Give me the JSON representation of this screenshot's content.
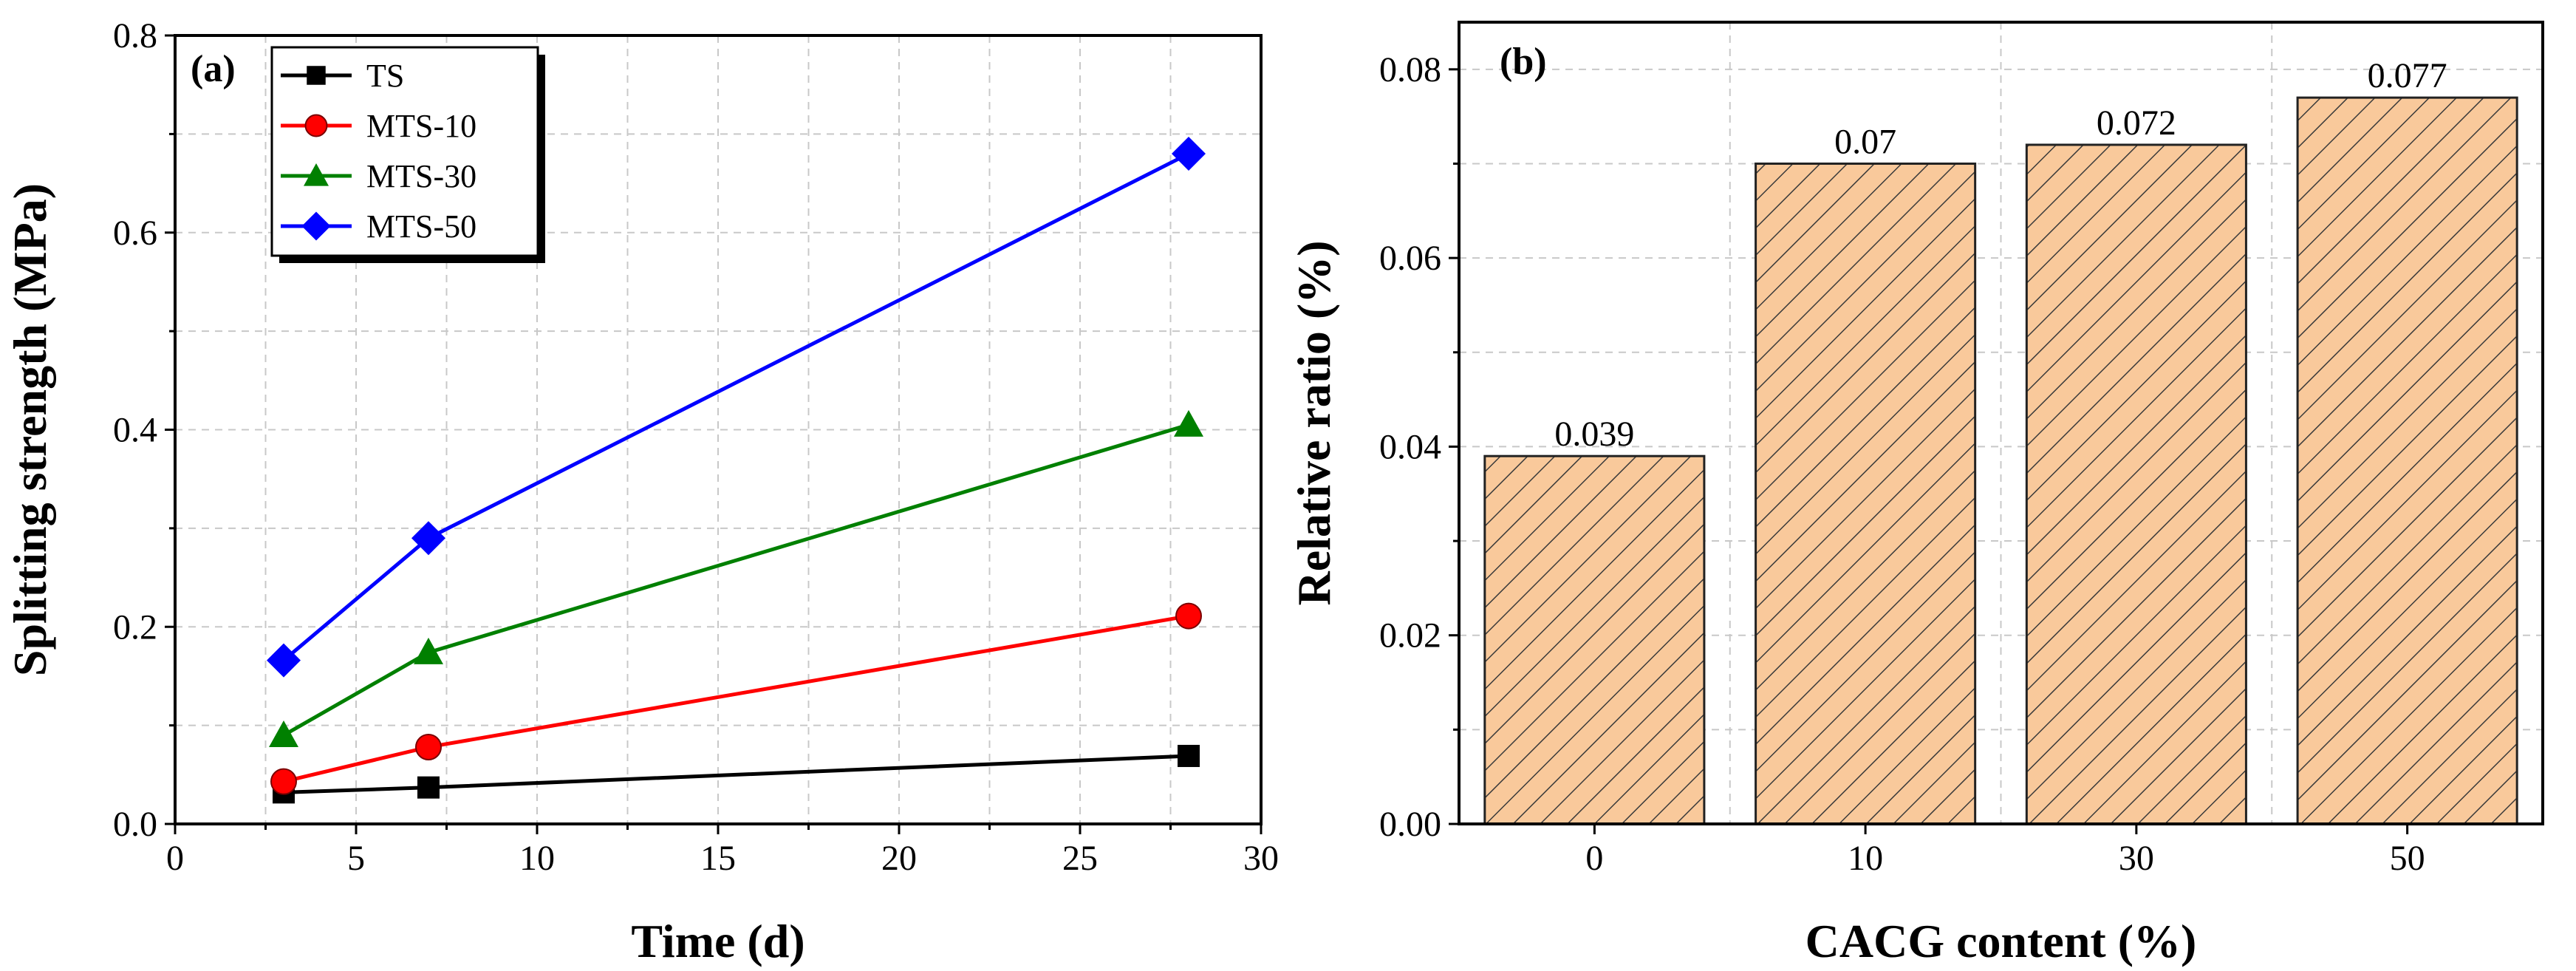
{
  "chart_data": [
    {
      "type": "line",
      "panel": "(a)",
      "title": "",
      "xlabel": "Time (d)",
      "ylabel": "Splitting strength (MPa)",
      "xlim": [
        0,
        30
      ],
      "ylim": [
        0,
        0.8
      ],
      "xticks": [
        "0",
        "5",
        "10",
        "15",
        "20",
        "25",
        "30"
      ],
      "yticks": [
        "0.0",
        "0.2",
        "0.4",
        "0.6",
        "0.8"
      ],
      "grid": true,
      "legend_position": "top-left",
      "x": [
        3,
        7,
        28
      ],
      "series": [
        {
          "name": "TS",
          "color": "#000000",
          "marker": "square",
          "values": [
            0.032,
            0.037,
            0.069
          ]
        },
        {
          "name": "MTS-10",
          "color": "#ff0000",
          "marker": "circle",
          "values": [
            0.043,
            0.078,
            0.211
          ]
        },
        {
          "name": "MTS-30",
          "color": "#008000",
          "marker": "triangle",
          "values": [
            0.09,
            0.174,
            0.405
          ]
        },
        {
          "name": "MTS-50",
          "color": "#0000ff",
          "marker": "diamond",
          "values": [
            0.166,
            0.29,
            0.68
          ]
        }
      ]
    },
    {
      "type": "bar",
      "panel": "(b)",
      "title": "",
      "xlabel": "CACG content (%)",
      "ylabel": "Relative ratio (%)",
      "categories": [
        "0",
        "10",
        "30",
        "50"
      ],
      "values": [
        0.039,
        0.07,
        0.072,
        0.077
      ],
      "data_labels": [
        "0.039",
        "0.07",
        "0.072",
        "0.077"
      ],
      "ylim": [
        0,
        0.085
      ],
      "yticks": [
        "0.00",
        "0.02",
        "0.04",
        "0.06",
        "0.08"
      ],
      "grid": true,
      "bar_color": "#f9c99b",
      "hatch_color": "#3a3a3a"
    }
  ]
}
